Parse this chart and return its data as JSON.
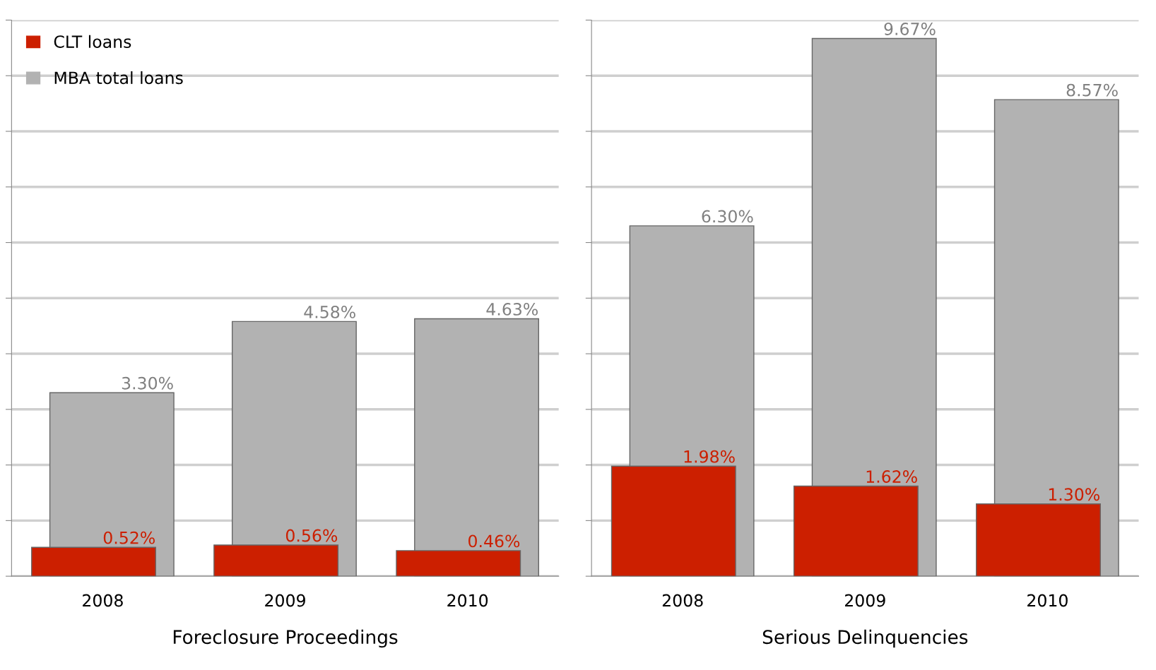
{
  "chart_data": [
    {
      "type": "bar",
      "xlabel": "Foreclosure Proceedings",
      "categories": [
        "2008",
        "2009",
        "2010"
      ],
      "series": [
        {
          "name": "CLT loans",
          "color": "#cc1f00",
          "values": [
            0.52,
            0.56,
            0.46
          ],
          "value_labels": [
            "0.52%",
            "0.56%",
            "0.46%"
          ]
        },
        {
          "name": "MBA total loans",
          "color": "#b2b2b2",
          "values": [
            3.3,
            4.58,
            4.63
          ],
          "value_labels": [
            "3.30%",
            "4.58%",
            "4.63%"
          ]
        }
      ],
      "ylim": [
        0,
        10
      ],
      "yticks": [
        {
          "value": 0,
          "label": null
        },
        {
          "value": 1,
          "label": null
        },
        {
          "value": 2,
          "label": null
        },
        {
          "value": 3,
          "label": null
        },
        {
          "value": 4,
          "label": null
        },
        {
          "value": 5,
          "label": null
        },
        {
          "value": 6,
          "label": null
        },
        {
          "value": 7,
          "label": null
        },
        {
          "value": 8,
          "label": null
        },
        {
          "value": 9,
          "label": null
        },
        {
          "value": 10,
          "label": null
        }
      ],
      "tick_labels": "x",
      "grid": "y",
      "legend": "top left"
    },
    {
      "type": "bar",
      "xlabel": "Serious Delinquencies",
      "categories": [
        "2008",
        "2009",
        "2010"
      ],
      "series": [
        {
          "color": "#cc1f00",
          "values": [
            1.98,
            1.62,
            1.3
          ],
          "value_labels": [
            "1.98%",
            "1.62%",
            "1.30%"
          ]
        },
        {
          "color": "#b2b2b2",
          "values": [
            6.3,
            9.67,
            8.57
          ],
          "value_labels": [
            "6.30%",
            "9.67%",
            "8.57%"
          ]
        }
      ],
      "ylim": [
        0,
        10
      ],
      "yticks": [
        {
          "value": 0,
          "label": null
        },
        {
          "value": 1,
          "label": null
        },
        {
          "value": 2,
          "label": null
        },
        {
          "value": 3,
          "label": null
        },
        {
          "value": 4,
          "label": null
        },
        {
          "value": 5,
          "label": null
        },
        {
          "value": 6,
          "label": null
        },
        {
          "value": 7,
          "label": null
        },
        {
          "value": 8,
          "label": null
        },
        {
          "value": 9,
          "label": null
        },
        {
          "value": 10,
          "label": null
        }
      ],
      "tick_labels": "x",
      "grid": "y"
    }
  ]
}
